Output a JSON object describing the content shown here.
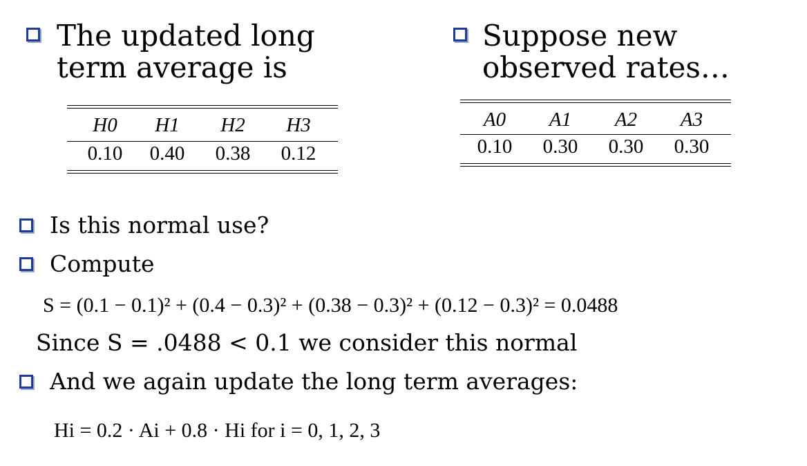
{
  "bullets": {
    "left_top": [
      "The updated long",
      "term average is"
    ],
    "right_top": [
      "Suppose new",
      "observed rates…"
    ],
    "q1": "Is this normal use?",
    "q2": "Compute",
    "since_text": "Since S = .0488 < 0.1 we consider this normal",
    "update_text": "And we again update the long term averages:"
  },
  "table_h": {
    "headers": [
      "H0",
      "H1",
      "H2",
      "H3"
    ],
    "values": [
      "0.10",
      "0.40",
      "0.38",
      "0.12"
    ]
  },
  "table_a": {
    "headers": [
      "A0",
      "A1",
      "A2",
      "A3"
    ],
    "values": [
      "0.10",
      "0.30",
      "0.30",
      "0.30"
    ]
  },
  "formula_s": "S = (0.1 − 0.1)² + (0.4 − 0.3)² + (0.38 − 0.3)² + (0.12 − 0.3)² = 0.0488",
  "formula_update": "Hi = 0.2 · Ai + 0.8 · Hi  for i = 0, 1, 2, 3",
  "colors": {
    "bullet_border": "#1f3a9a",
    "text": "#000000"
  }
}
